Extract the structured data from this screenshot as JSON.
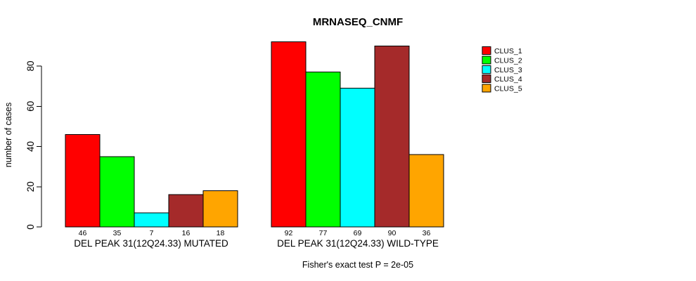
{
  "chart_data": {
    "type": "bar",
    "title": "MRNASEQ_CNMF",
    "ylabel": "number of cases",
    "xlabel": "",
    "yticks": [
      0,
      20,
      40,
      60,
      80
    ],
    "ylim": [
      0,
      93
    ],
    "grid": false,
    "legend_position": "right",
    "categories": [
      "DEL PEAK 31(12Q24.33) MUTATED",
      "DEL PEAK 31(12Q24.33) WILD-TYPE"
    ],
    "series": [
      {
        "name": "CLUS_1",
        "color": "#FF0000",
        "values": [
          46,
          92
        ]
      },
      {
        "name": "CLUS_2",
        "color": "#00FF00",
        "values": [
          35,
          77
        ]
      },
      {
        "name": "CLUS_3",
        "color": "#00FFFF",
        "values": [
          7,
          69
        ]
      },
      {
        "name": "CLUS_4",
        "color": "#A52A2A",
        "values": [
          16,
          90
        ]
      },
      {
        "name": "CLUS_5",
        "color": "#FFA500",
        "values": [
          18,
          36
        ]
      }
    ],
    "bar_value_labels": [
      [
        46,
        35,
        7,
        16,
        18
      ],
      [
        92,
        77,
        69,
        90,
        36
      ]
    ],
    "caption": "Fisher's exact test P = 2e-05"
  },
  "colors": {
    "background": "#FFFFFF",
    "axis": "#000000",
    "text": "#000000",
    "bar_border": "#000000"
  }
}
